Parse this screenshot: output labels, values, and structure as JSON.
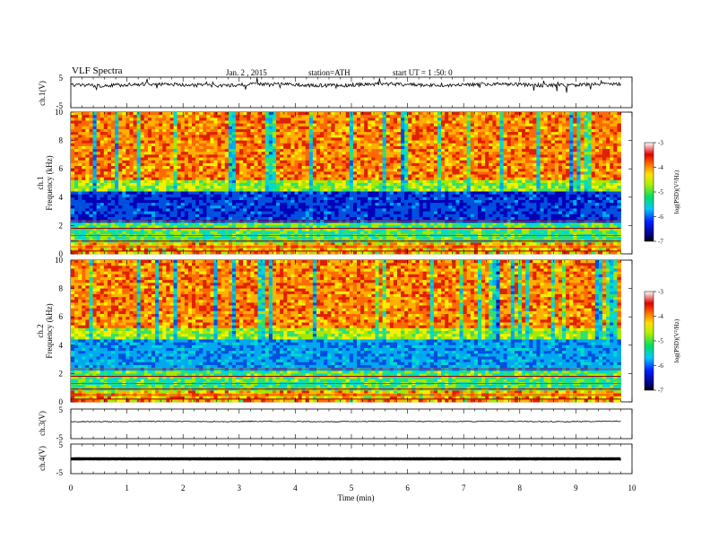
{
  "header": {
    "title": "VLF  Spectra",
    "date": "Jan. 2 , 2015",
    "station": "station=ATH",
    "start": "start  UT =   1 :50: 0"
  },
  "colors": {
    "ramp": [
      "#7a0000",
      "#b00000",
      "#e02000",
      "#ff6a00",
      "#ffb000",
      "#f5f000",
      "#a8e800",
      "#30e070",
      "#00d8d0",
      "#00a8f0",
      "#0050e0",
      "#0000b8",
      "#000070"
    ]
  },
  "chart_data": [
    {
      "type": "line",
      "ylabel": "ch.1(V)",
      "ylim": [
        -5,
        5
      ],
      "yticks": [
        "5",
        "-5"
      ],
      "description_baseline": 2.5,
      "xlim": [
        0,
        10
      ]
    },
    {
      "type": "heatmap",
      "ylabel_top": "ch.1",
      "ylabel": "Frequency  (kHz)",
      "ylim": [
        0,
        10
      ],
      "yticks": [
        "0",
        "2",
        "4",
        "6",
        "8",
        "10"
      ],
      "xlim": [
        0,
        9.8
      ],
      "colorbar": {
        "label": "log(PSD)(V²/Hz)",
        "ticks": [
          "-3",
          "-4",
          "-5",
          "-6",
          "-7"
        ],
        "range": [
          -7,
          -3
        ]
      }
    },
    {
      "type": "heatmap",
      "ylabel_top": "ch.2",
      "ylabel": "Frequency  (kHz)",
      "ylim": [
        0,
        10
      ],
      "yticks": [
        "0",
        "2",
        "4",
        "6",
        "8",
        "10"
      ],
      "xlim": [
        0,
        9.8
      ],
      "colorbar": {
        "label": "log(PSD)(V²/Hz)",
        "ticks": [
          "-3",
          "-4",
          "-5",
          "-6",
          "-7"
        ],
        "range": [
          -7,
          -3
        ]
      }
    },
    {
      "type": "line",
      "ylabel": "ch.3(V)",
      "ylim": [
        -5,
        5
      ],
      "yticks": [
        "5",
        "-5"
      ],
      "level": 0.8,
      "xlim": [
        0,
        10
      ]
    },
    {
      "type": "line",
      "ylabel": "ch.4(V)",
      "ylim": [
        -5,
        5
      ],
      "yticks": [
        "5",
        "-5"
      ],
      "level": 0.0,
      "xlim": [
        0,
        10
      ]
    }
  ],
  "xaxis": {
    "label": "Time  (min)",
    "ticks": [
      "0",
      "1",
      "2",
      "3",
      "4",
      "5",
      "6",
      "7",
      "8",
      "9",
      "10"
    ]
  }
}
